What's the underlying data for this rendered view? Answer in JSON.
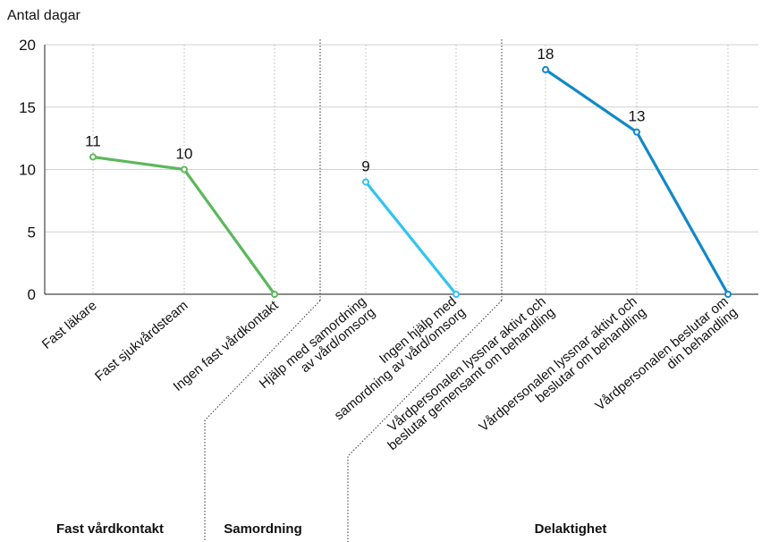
{
  "chart_data": {
    "type": "line",
    "ylabel": "Antal dagar",
    "ylim": [
      0,
      20
    ],
    "yticks": [
      0,
      5,
      10,
      15,
      20
    ],
    "grid": "dotted vertical at categories, solid horizontal",
    "groups": [
      {
        "name": "Fast vårdkontakt",
        "color": "#5bb85b",
        "categories": [
          "Fast läkare",
          "Fast sjukvårdsteam",
          "Ingen fast vårdkontakt"
        ],
        "values": [
          11,
          10,
          0
        ],
        "value_labels": [
          "11",
          "10",
          ""
        ]
      },
      {
        "name": "Samordning",
        "color": "#33c3ee",
        "categories": [
          "Hjälp med samordning av vård/omsorg",
          "Ingen hjälp med samordning av vård/omsorg"
        ],
        "values": [
          9,
          0
        ],
        "value_labels": [
          "9",
          ""
        ]
      },
      {
        "name": "Delaktighet",
        "color": "#1188c8",
        "categories": [
          "Vårdpersonalen lyssnar aktivt och beslutar gemensamt om behandling",
          "Vårdpersonalen lyssnar aktivt och beslutar om behandling",
          "Vårdpersonalen beslutar om din behandling"
        ],
        "values": [
          18,
          13,
          0
        ],
        "value_labels": [
          "18",
          "13",
          ""
        ]
      }
    ]
  }
}
